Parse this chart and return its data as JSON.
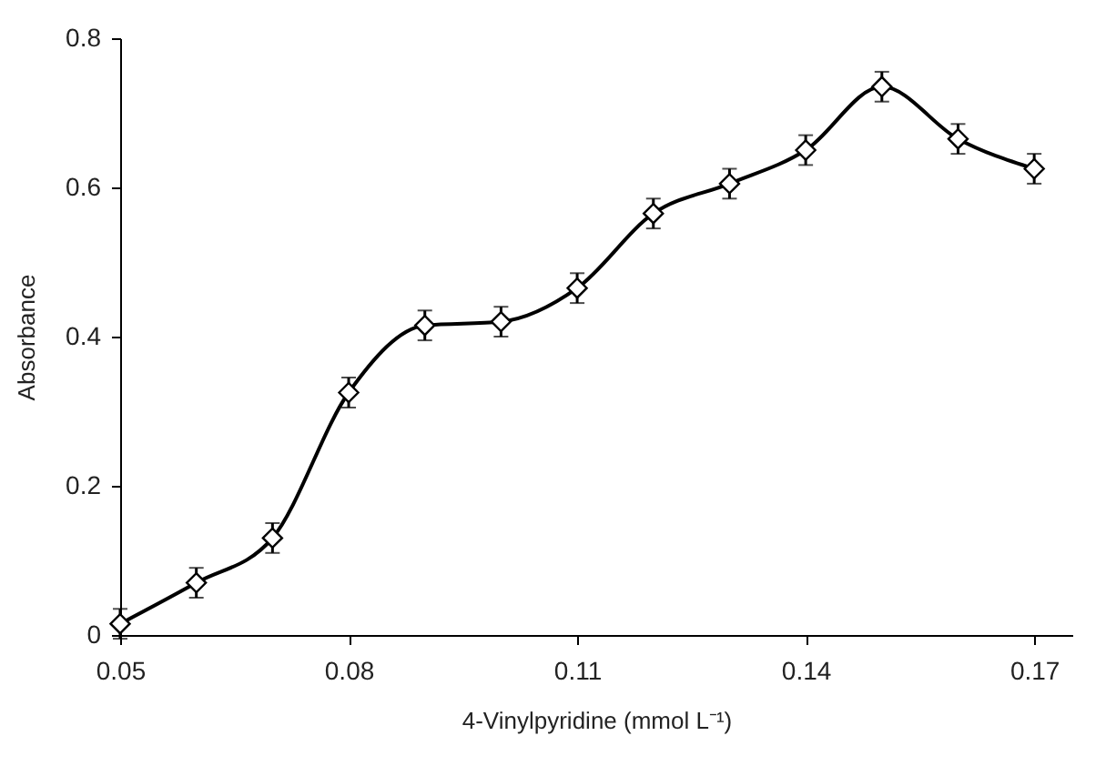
{
  "chart_data": {
    "type": "line",
    "xlabel": "4-Vinylpyridine (mmol L⁻¹)",
    "ylabel": "Absorbance",
    "x": [
      0.05,
      0.06,
      0.07,
      0.08,
      0.09,
      0.1,
      0.11,
      0.12,
      0.13,
      0.14,
      0.15,
      0.16,
      0.17
    ],
    "series": [
      {
        "color": "#000000",
        "values": [
          0.015,
          0.07,
          0.13,
          0.325,
          0.415,
          0.42,
          0.465,
          0.565,
          0.605,
          0.65,
          0.735,
          0.665,
          0.625
        ],
        "errors": [
          0.02,
          0.02,
          0.02,
          0.02,
          0.02,
          0.02,
          0.02,
          0.02,
          0.02,
          0.02,
          0.02,
          0.02,
          0.02
        ]
      }
    ],
    "xlim": [
      0.05,
      0.175
    ],
    "xticks": [
      0.05,
      0.08,
      0.11,
      0.14,
      0.17
    ],
    "ylim": [
      0,
      0.8
    ],
    "yticks": [
      0,
      0.2,
      0.4,
      0.6,
      0.8
    ],
    "grid": false,
    "marker": "diamond",
    "line_style": "solid"
  }
}
